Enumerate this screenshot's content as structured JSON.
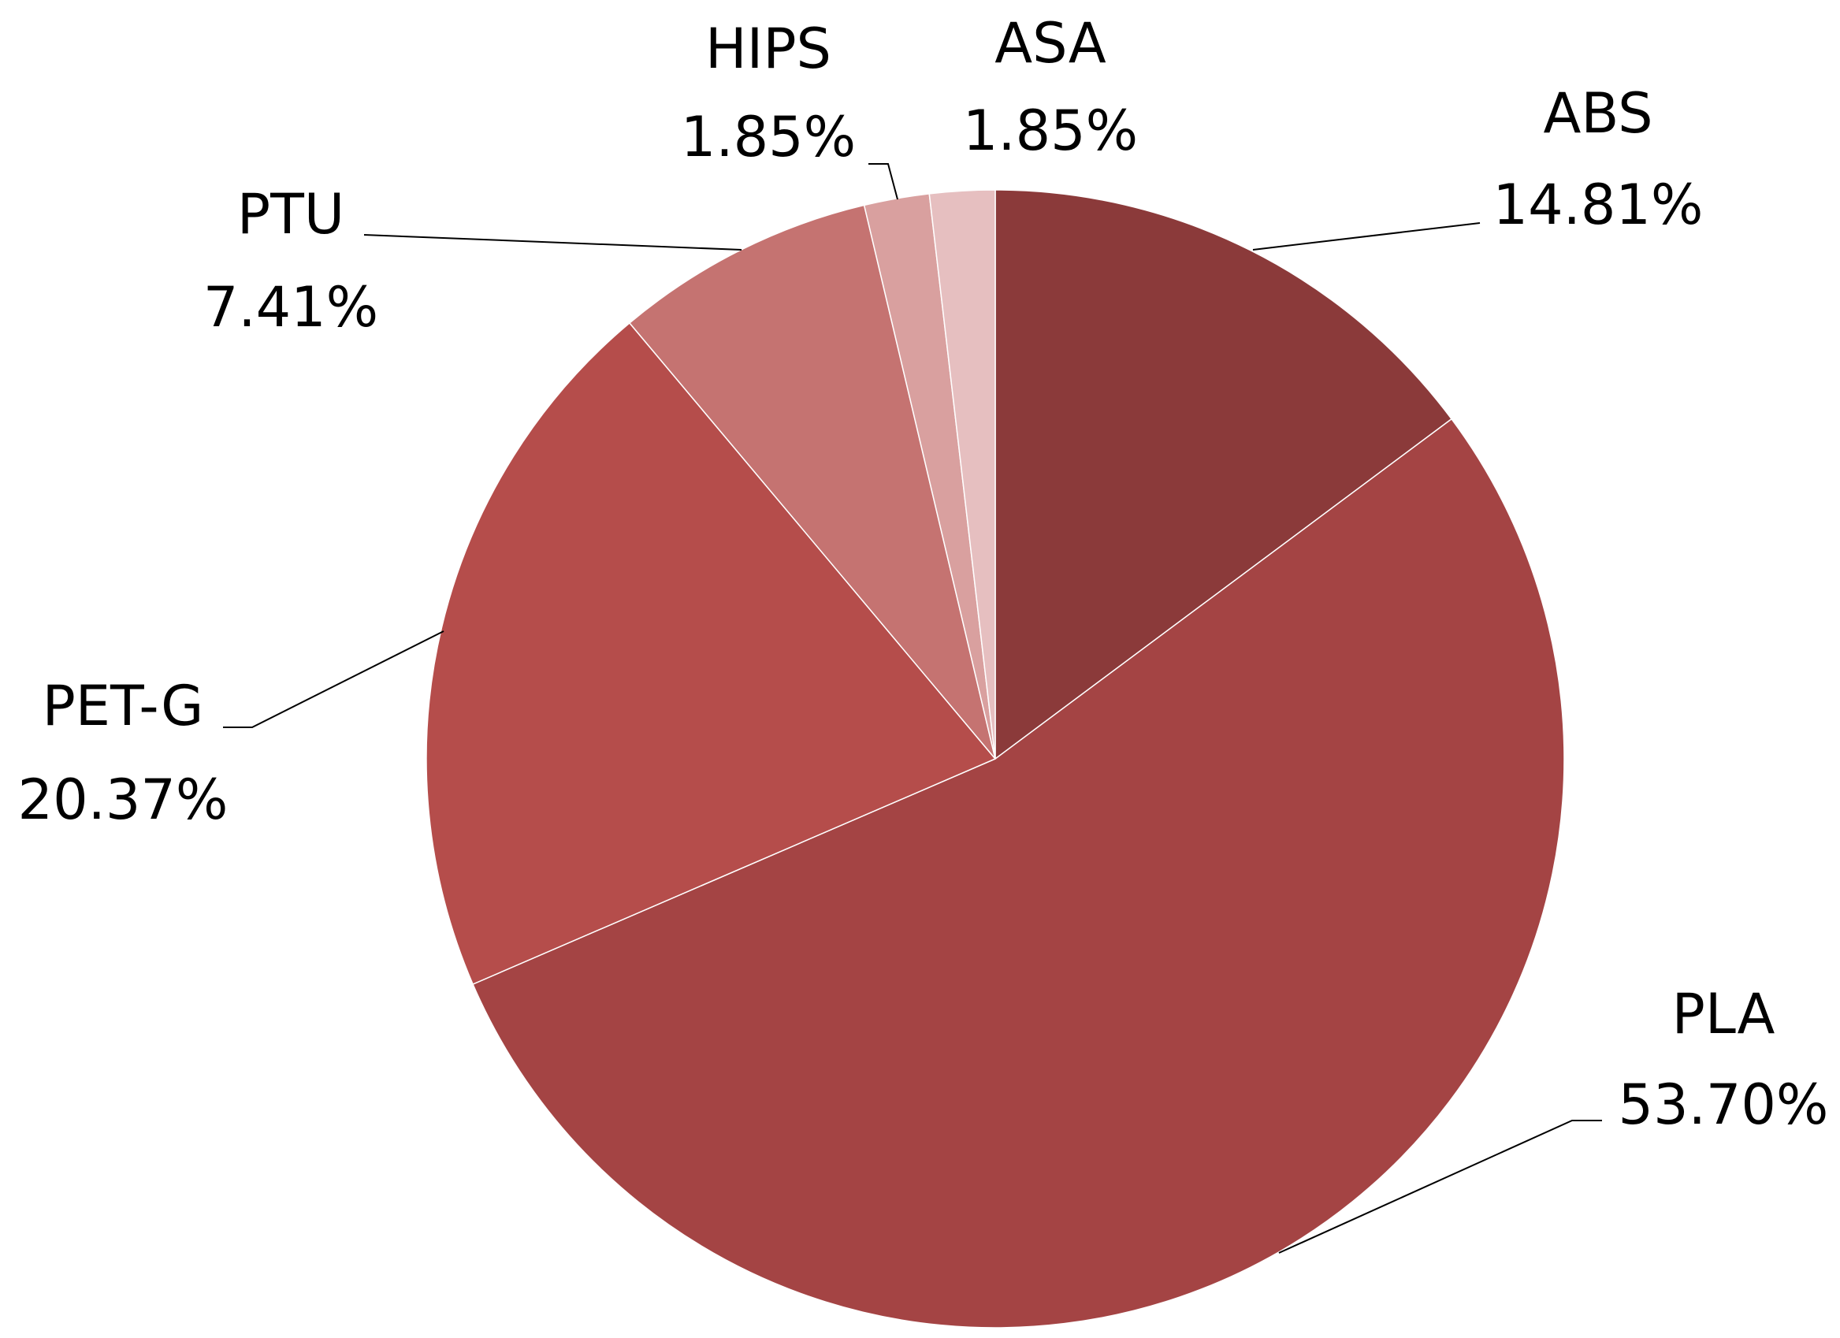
{
  "chart_data": {
    "type": "pie",
    "categories": [
      "ABS",
      "PLA",
      "PET-G",
      "PTU",
      "HIPS",
      "ASA"
    ],
    "values": [
      14.81,
      53.7,
      20.37,
      7.41,
      1.85,
      1.85
    ],
    "value_labels": [
      "14.81%",
      "53.70%",
      "20.37%",
      "7.41%",
      "1.85%",
      "1.85%"
    ],
    "colors": [
      "#8b3a3a",
      "#a44444",
      "#b54d4b",
      "#c57371",
      "#d9a09f",
      "#e6bfc0"
    ]
  }
}
